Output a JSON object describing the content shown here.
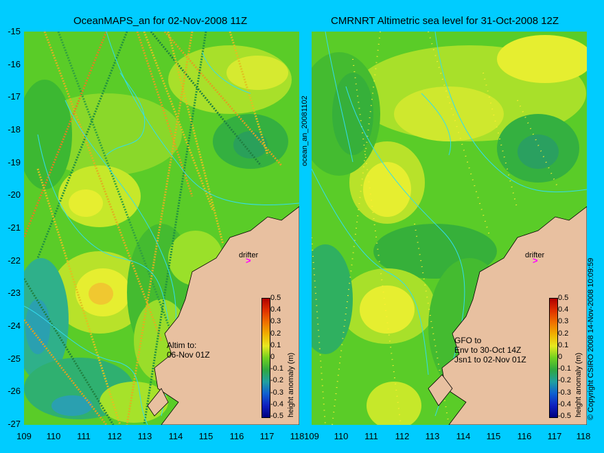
{
  "left_panel": {
    "title": "OceanMAPS_an for 02-Nov-2008 11Z",
    "note": "Altim to:\n06-Nov 01Z",
    "drifter_label": "drifter",
    "colorbar_label": "height anomaly (m)"
  },
  "right_panel": {
    "title": "CMRNRT Altimetric sea level  for 31-Oct-2008 12Z",
    "note": "GFO to\nEnv to 30-Oct 14Z\nJsn1 to 02-Nov 01Z",
    "drifter_label": "drifter",
    "colorbar_label": "height anomaly (m)"
  },
  "middle_label": "ocean_an_20081102",
  "copyright": "© Copyright CSIRO 2008   14-Nov-2008 10:09:59",
  "axes": {
    "lat_labels": [
      "-15",
      "-16",
      "-17",
      "-18",
      "-19",
      "-20",
      "-21",
      "-22",
      "-23",
      "-24",
      "-25",
      "-26",
      "-27"
    ],
    "lon_labels": [
      "109",
      "110",
      "111",
      "112",
      "113",
      "114",
      "115",
      "116",
      "117",
      "118"
    ]
  },
  "colorbar": {
    "ticks": [
      "0.5",
      "0.4",
      "0.3",
      "0.2",
      "0.1",
      "0",
      "-0.1",
      "-0.2",
      "-0.3",
      "-0.4",
      "-0.5"
    ]
  },
  "colors": {
    "background": "#00ccff",
    "land": "#e8c0a0",
    "base_ocean": "#55cc22",
    "drifter": "#ff00ff"
  }
}
